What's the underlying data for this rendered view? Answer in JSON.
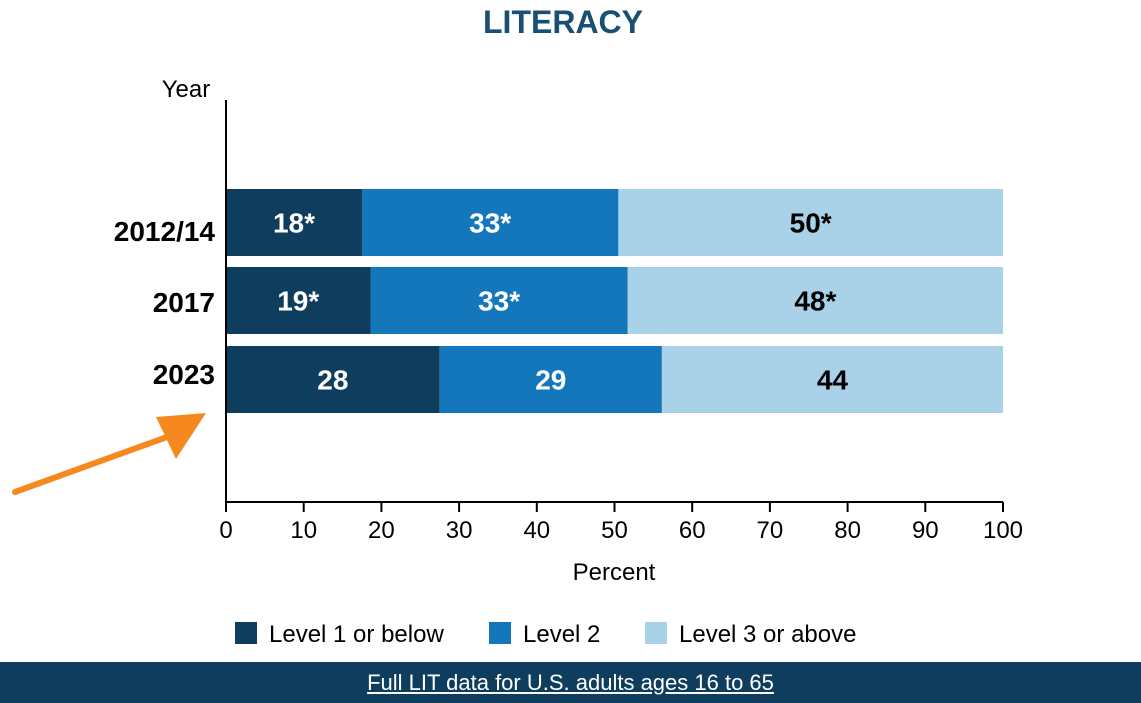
{
  "colors": {
    "level1": "#0f3d5e",
    "level2": "#1577bb",
    "level3": "#a9d2e8",
    "title": "#1a4f74",
    "footer": "#0f3d5e",
    "arrow": "#f5891f"
  },
  "chart_data": {
    "type": "bar",
    "orientation": "horizontal",
    "stacked": true,
    "title": "LITERACY",
    "xlabel": "Percent",
    "ylabel": "Year",
    "xlim": [
      0,
      100
    ],
    "xticks": [
      "0",
      "10",
      "20",
      "30",
      "40",
      "50",
      "60",
      "70",
      "80",
      "90",
      "100"
    ],
    "categories": [
      "2012/14",
      "2017",
      "2023"
    ],
    "series": [
      {
        "name": "Level 1 or below",
        "values": [
          17.5,
          18.6,
          27.5
        ],
        "labels": [
          "18*",
          "19*",
          "28"
        ]
      },
      {
        "name": "Level 2",
        "values": [
          33.0,
          33.1,
          28.6
        ],
        "labels": [
          "33*",
          "33*",
          "29"
        ]
      },
      {
        "name": "Level 3 or above",
        "values": [
          49.5,
          48.3,
          43.9
        ],
        "labels": [
          "50*",
          "48*",
          "44"
        ]
      }
    ],
    "legend_position": "bottom",
    "grid": false
  },
  "footer": {
    "link_text": "Full LIT data for U.S. adults ages 16 to 65"
  }
}
